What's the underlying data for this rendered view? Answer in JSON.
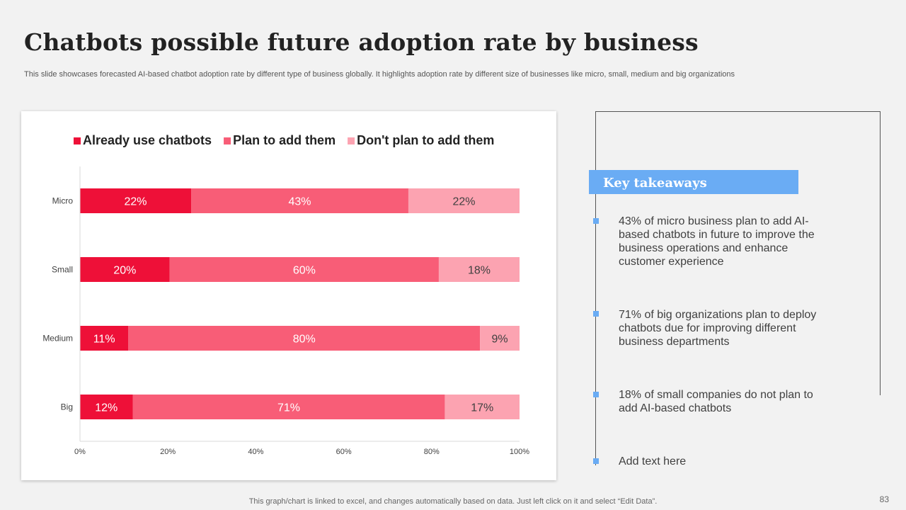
{
  "title": "Chatbots possible future adoption rate by business",
  "subtitle": "This slide showcases forecasted AI-based chatbot adoption rate by different type  of business globally. It highlights adoption rate by different size of businesses like micro, small, medium and big organizations",
  "chart_data": {
    "type": "bar",
    "orientation": "horizontal",
    "stacked": true,
    "normalized": true,
    "categories": [
      "Micro",
      "Small",
      "Medium",
      "Big"
    ],
    "series": [
      {
        "name": "Already use chatbots",
        "color": "#ee1038",
        "labels": [
          "22%",
          "20%",
          "11%",
          "12%"
        ],
        "values": [
          22,
          20,
          11,
          12
        ]
      },
      {
        "name": "Plan to add them",
        "color": "#f85d77",
        "labels": [
          "43%",
          "60%",
          "80%",
          "71%"
        ],
        "values": [
          43,
          60,
          80,
          71
        ]
      },
      {
        "name": "Don't plan to add them",
        "color": "#fca3b1",
        "labels": [
          "22%",
          "18%",
          "9%",
          "17%"
        ],
        "values": [
          22,
          18,
          9,
          17
        ]
      }
    ],
    "xticks": [
      "0%",
      "20%",
      "40%",
      "60%",
      "80%",
      "100%"
    ],
    "xlim": [
      0,
      100
    ],
    "legend": "top",
    "grid": false
  },
  "takeaways": {
    "heading": "Key takeaways",
    "points": [
      "43% of micro business plan to add AI-based chatbots in future  to improve the business operations and enhance customer experience",
      "71% of big organizations plan to deploy chatbots due for improving different business departments",
      "18% of small companies do not plan to add AI-based chatbots",
      "Add text here"
    ]
  },
  "footer_note": "This graph/chart is linked to excel,  and changes automatically based on data. Just left click on it and select “Edit Data”.",
  "page_number": "83"
}
